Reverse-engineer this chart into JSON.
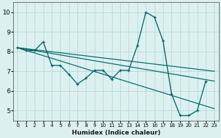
{
  "xlabel": "Humidex (Indice chaleur)",
  "bg_color": "#ddf0f0",
  "line_color": "#006868",
  "grid_color": "#b8dada",
  "xlim": [
    -0.5,
    23.5
  ],
  "ylim": [
    4.5,
    10.5
  ],
  "xticks": [
    0,
    1,
    2,
    3,
    4,
    5,
    6,
    7,
    8,
    9,
    10,
    11,
    12,
    13,
    14,
    15,
    16,
    17,
    18,
    19,
    20,
    21,
    22,
    23
  ],
  "yticks": [
    5,
    6,
    7,
    8,
    9,
    10
  ],
  "main_x": [
    0,
    1,
    2,
    3,
    4,
    5,
    6,
    7,
    8,
    9,
    10,
    11,
    12,
    13,
    14,
    15,
    16,
    17,
    18,
    19,
    20,
    21,
    22
  ],
  "main_y": [
    8.2,
    8.05,
    8.05,
    8.5,
    7.3,
    7.3,
    6.85,
    6.35,
    6.65,
    7.05,
    7.05,
    6.6,
    7.05,
    7.05,
    8.3,
    10.0,
    9.75,
    8.55,
    5.85,
    4.75,
    4.75,
    5.0,
    6.5
  ],
  "diag_lines": [
    {
      "x": [
        0,
        23
      ],
      "y": [
        8.2,
        5.1
      ]
    },
    {
      "x": [
        0,
        23
      ],
      "y": [
        8.2,
        6.5
      ]
    },
    {
      "x": [
        0,
        23
      ],
      "y": [
        8.2,
        7.0
      ]
    }
  ]
}
